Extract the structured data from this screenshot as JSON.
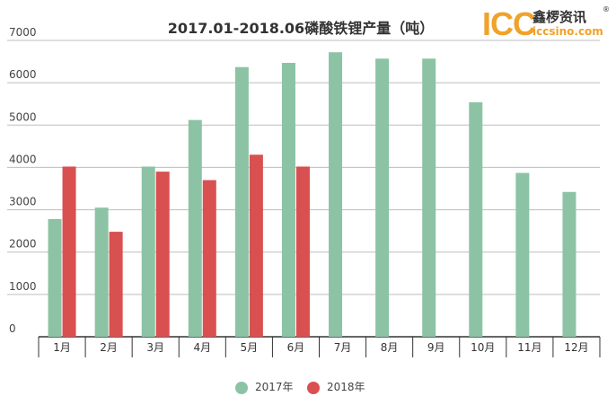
{
  "chart_data": {
    "type": "bar",
    "title": "2017.01-2018.06磷酸铁锂产量（吨）",
    "categories": [
      "1月",
      "2月",
      "3月",
      "4月",
      "5月",
      "6月",
      "7月",
      "8月",
      "9月",
      "10月",
      "11月",
      "12月"
    ],
    "series": [
      {
        "name": "2017年",
        "color": "#8cc3a4",
        "values": [
          2780,
          3050,
          4020,
          5120,
          6370,
          6470,
          6720,
          6570,
          6570,
          5540,
          3870,
          3420
        ]
      },
      {
        "name": "2018年",
        "color": "#d95050",
        "values": [
          4020,
          2480,
          3900,
          3700,
          4300,
          4020,
          null,
          null,
          null,
          null,
          null,
          null
        ]
      }
    ],
    "ylim": [
      0,
      7000
    ],
    "yticks": [
      "0",
      "1000",
      "2000",
      "3000",
      "4000",
      "5000",
      "6000",
      "7000"
    ],
    "grid": true,
    "legend_position": "bottom",
    "xlabel": "",
    "ylabel": ""
  },
  "logo": {
    "mark": "ICC",
    "name": "鑫椤资讯",
    "url": "iccsino.com",
    "reg": "®"
  }
}
